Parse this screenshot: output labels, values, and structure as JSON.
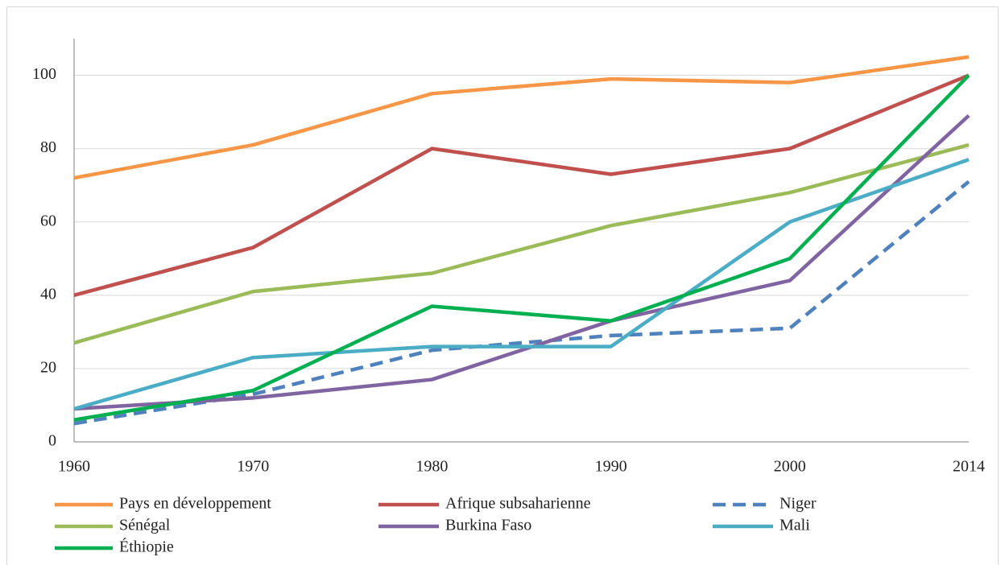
{
  "chart_data": {
    "type": "line",
    "categories": [
      "1960",
      "1970",
      "1980",
      "1990",
      "2000",
      "2014"
    ],
    "ylim": [
      0,
      110
    ],
    "yticks": [
      0,
      20,
      40,
      60,
      80,
      100
    ],
    "grid": true,
    "series": [
      {
        "name": "Pays en développement",
        "color": "#f79646",
        "values": [
          72,
          81,
          95,
          99,
          98,
          105
        ]
      },
      {
        "name": "Afrique subsaharienne",
        "color": "#c0504d",
        "values": [
          40,
          53,
          80,
          73,
          80,
          100
        ]
      },
      {
        "name": "Niger",
        "color": "#4f81bd",
        "dashed": true,
        "values": [
          5,
          13,
          25,
          29,
          31,
          71
        ]
      },
      {
        "name": "Sénégal",
        "color": "#9bbb59",
        "values": [
          27,
          41,
          46,
          59,
          68,
          81
        ]
      },
      {
        "name": "Burkina Faso",
        "color": "#8064a2",
        "values": [
          9,
          12,
          17,
          33,
          44,
          89
        ]
      },
      {
        "name": "Mali",
        "color": "#4bacc6",
        "values": [
          9,
          23,
          26,
          26,
          60,
          77
        ]
      },
      {
        "name": "Éthiopie",
        "color": "#00b050",
        "values": [
          6,
          14,
          37,
          33,
          50,
          100
        ]
      }
    ]
  }
}
